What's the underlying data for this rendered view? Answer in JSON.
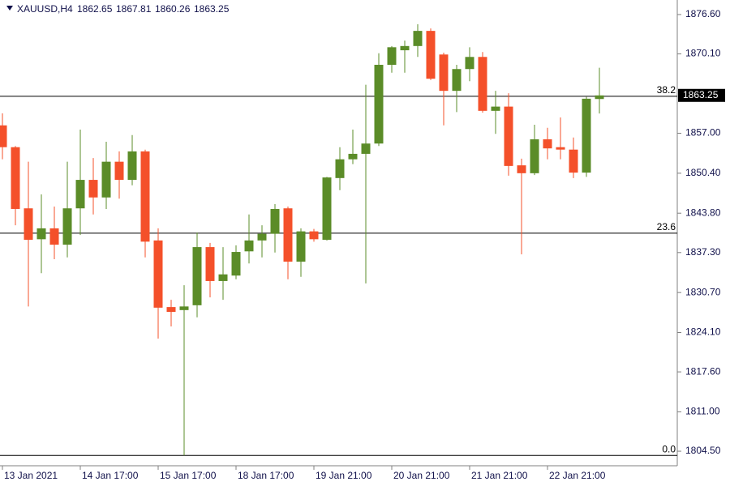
{
  "chart_data": {
    "type": "candlestick",
    "title": "XAUUSD,H4",
    "categories": [
      "13 Jan 2021",
      null,
      null,
      null,
      null,
      null,
      "14 Jan 17:00",
      null,
      null,
      null,
      null,
      null,
      "15 Jan 17:00",
      null,
      null,
      null,
      null,
      null,
      "18 Jan 17:00",
      null,
      null,
      null,
      null,
      null,
      "19 Jan 21:00",
      null,
      null,
      null,
      null,
      null,
      "20 Jan 21:00",
      null,
      null,
      null,
      null,
      null,
      "21 Jan 21:00",
      null,
      null,
      null,
      null,
      null,
      "22 Jan 21:00",
      null,
      null,
      null,
      null
    ],
    "open": [
      1858.3,
      1854.7,
      1844.6,
      1839.5,
      1841.3,
      1838.6,
      1844.6,
      1849.3,
      1846.4,
      1852.3,
      1849.3,
      1854.0,
      1839.3,
      1828.3,
      1827.8,
      1828.6,
      1838.2,
      1832.6,
      1833.5,
      1837.5,
      1839.3,
      1840.4,
      1844.6,
      1835.8,
      1840.8,
      1839.4,
      1849.6,
      1852.7,
      1853.6,
      1855.3,
      1868.3,
      1870.7,
      1871.4,
      1873.9,
      1870.0,
      1864.0,
      1867.6,
      1869.6,
      1860.7,
      1861.4,
      1851.7,
      1850.4,
      1856.0,
      1854.7,
      1854.3,
      1850.5,
      1862.65
    ],
    "high": [
      1860.3,
      1854.9,
      1852.3,
      1846.9,
      1844.9,
      1852.3,
      1857.6,
      1852.9,
      1855.6,
      1854.0,
      1856.7,
      1854.3,
      1841.3,
      1829.5,
      1831.9,
      1840.6,
      1838.9,
      1838.2,
      1838.5,
      1843.6,
      1841.8,
      1845.3,
      1844.9,
      1841.3,
      1841.2,
      1849.8,
      1854.7,
      1857.6,
      1865.0,
      1870.2,
      1871.4,
      1872.3,
      1875.0,
      1874.3,
      1870.3,
      1868.3,
      1871.2,
      1870.4,
      1864.0,
      1863.6,
      1852.8,
      1858.4,
      1857.9,
      1859.6,
      1856.3,
      1863.0,
      1867.81
    ],
    "low": [
      1852.7,
      1841.8,
      1828.4,
      1833.9,
      1836.2,
      1836.5,
      1840.2,
      1843.6,
      1844.5,
      1846.2,
      1848.4,
      1836.5,
      1823.1,
      1825.1,
      1803.8,
      1826.6,
      1829.9,
      1829.5,
      1832.9,
      1835.5,
      1836.5,
      1837.3,
      1832.9,
      1833.3,
      1839.1,
      1839.3,
      1847.6,
      1851.9,
      1832.2,
      1854.9,
      1867.0,
      1867.0,
      1869.6,
      1865.8,
      1858.3,
      1860.5,
      1865.6,
      1860.4,
      1856.9,
      1850.0,
      1837.0,
      1850.1,
      1852.7,
      1852.7,
      1849.6,
      1849.8,
      1860.26
    ],
    "close": [
      1854.7,
      1844.5,
      1839.4,
      1841.3,
      1838.6,
      1844.6,
      1849.3,
      1846.4,
      1852.3,
      1849.3,
      1854.0,
      1839.1,
      1828.2,
      1827.5,
      1828.4,
      1838.2,
      1832.6,
      1833.7,
      1837.4,
      1839.3,
      1840.4,
      1844.5,
      1835.8,
      1840.8,
      1839.5,
      1849.7,
      1852.7,
      1853.6,
      1855.3,
      1868.3,
      1871.2,
      1871.4,
      1873.9,
      1866.0,
      1864.0,
      1867.6,
      1869.6,
      1860.7,
      1861.4,
      1851.6,
      1850.4,
      1856.0,
      1854.5,
      1854.3,
      1850.5,
      1862.7,
      1863.25
    ],
    "up_color": "#5b8c28",
    "down_color": "#f4502a",
    "ylim": [
      1802.1,
      1879.0
    ],
    "yticks": [
      {
        "value": 1876.6,
        "label": "1876.60"
      },
      {
        "value": 1870.1,
        "label": "1870.10"
      },
      {
        "value": 1857.0,
        "label": "1857.00"
      },
      {
        "value": 1850.4,
        "label": "1850.40"
      },
      {
        "value": 1843.8,
        "label": "1843.80"
      },
      {
        "value": 1837.3,
        "label": "1837.30"
      },
      {
        "value": 1830.7,
        "label": "1830.70"
      },
      {
        "value": 1824.1,
        "label": "1824.10"
      },
      {
        "value": 1817.6,
        "label": "1817.60"
      },
      {
        "value": 1811.0,
        "label": "1811.00"
      },
      {
        "value": 1804.5,
        "label": "1804.50"
      }
    ],
    "fib_levels": [
      {
        "label": "38.2",
        "price": 1863.1
      },
      {
        "label": "23.6",
        "price": 1840.5
      },
      {
        "label": "0.0",
        "price": 1803.8
      }
    ]
  }
}
